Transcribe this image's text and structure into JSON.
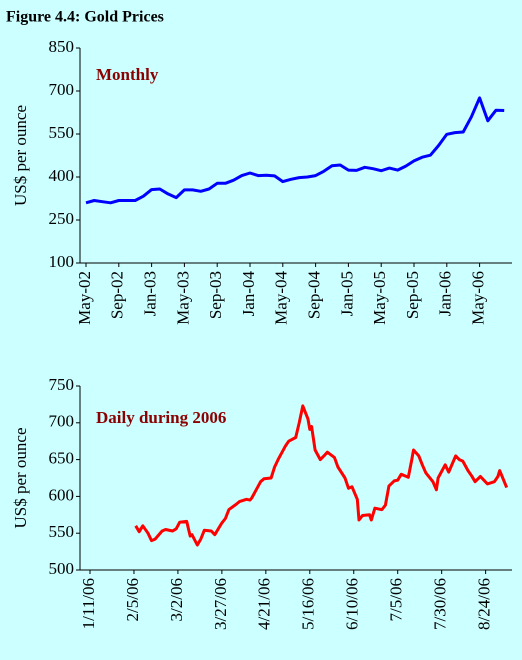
{
  "figure_title": "Figure 4.4: Gold Prices",
  "chart_data": [
    {
      "type": "line",
      "label": "Monthly",
      "y_label": "US$ per ounce",
      "categories": [
        "May-02",
        null,
        null,
        null,
        "Sep-02",
        null,
        null,
        null,
        "Jan-03",
        null,
        null,
        null,
        "May-03",
        null,
        null,
        null,
        "Sep-03",
        null,
        null,
        null,
        "Jan-04",
        null,
        null,
        null,
        "May-04",
        null,
        null,
        null,
        "Sep-04",
        null,
        null,
        null,
        "Jan-05",
        null,
        null,
        null,
        "May-05",
        null,
        null,
        null,
        "Sep-05",
        null,
        null,
        null,
        "Jan-06",
        null,
        null,
        null,
        "May-06",
        null,
        null,
        null
      ],
      "values": [
        310,
        318,
        314,
        310,
        318,
        318,
        318,
        333,
        356,
        358,
        341,
        328,
        355,
        355,
        350,
        358,
        378,
        378,
        389,
        405,
        414,
        405,
        406,
        404,
        384,
        392,
        398,
        400,
        405,
        420,
        439,
        442,
        424,
        423,
        434,
        429,
        422,
        431,
        424,
        438,
        456,
        469,
        476,
        510,
        549,
        555,
        557,
        610,
        676,
        596,
        633,
        632
      ],
      "color": "#0000ff",
      "ylim": [
        100,
        850
      ],
      "yticks": [
        100,
        250,
        400,
        550,
        700,
        850
      ]
    },
    {
      "type": "line",
      "label": "Daily during 2006",
      "y_label": "US$ per ounce",
      "x": [
        "2/6/06",
        "2/8/06",
        "2/10/06",
        "2/13/06",
        "2/15/06",
        "2/17/06",
        "2/21/06",
        "2/23/06",
        "2/27/06",
        "3/1/06",
        "3/3/06",
        "3/7/06",
        "3/9/06",
        "3/10/06",
        "3/13/06",
        "3/15/06",
        "3/17/06",
        "3/21/06",
        "3/23/06",
        "3/27/06",
        "3/29/06",
        "3/31/06",
        "4/4/06",
        "4/6/06",
        "4/10/06",
        "4/12/06",
        "4/13/06",
        "4/18/06",
        "4/20/06",
        "4/24/06",
        "4/26/06",
        "4/28/06",
        "5/2/06",
        "5/4/06",
        "5/8/06",
        "5/10/06",
        "5/12/06",
        "5/15/06",
        "5/16/06",
        "5/17/06",
        "5/19/06",
        "5/22/06",
        "5/24/06",
        "5/26/06",
        "5/30/06",
        "6/1/06",
        "6/5/06",
        "6/7/06",
        "6/9/06",
        "6/12/06",
        "6/13/06",
        "6/15/06",
        "6/19/06",
        "6/20/06",
        "6/22/06",
        "6/26/06",
        "6/28/06",
        "6/30/06",
        "7/3/06",
        "7/5/06",
        "7/7/06",
        "7/11/06",
        "7/13/06",
        "7/14/06",
        "7/17/06",
        "7/19/06",
        "7/21/06",
        "7/25/06",
        "7/27/06",
        "7/28/06",
        "8/1/06",
        "8/3/06",
        "8/7/06",
        "8/9/06",
        "8/11/06",
        "8/14/06",
        "8/16/06",
        "8/18/06",
        "8/21/06",
        "8/23/06",
        "8/25/06",
        "8/29/06",
        "8/31/06",
        "9/1/06",
        "9/5/06"
      ],
      "values": [
        560,
        552,
        560,
        550,
        540,
        542,
        553,
        555,
        553,
        556,
        565,
        566,
        546,
        548,
        534,
        542,
        554,
        553,
        548,
        564,
        570,
        582,
        589,
        593,
        596,
        595,
        598,
        620,
        624,
        625,
        640,
        650,
        668,
        675,
        680,
        700,
        723,
        705,
        691,
        695,
        663,
        650,
        655,
        660,
        653,
        640,
        625,
        611,
        613,
        596,
        568,
        574,
        575,
        568,
        584,
        582,
        588,
        614,
        621,
        622,
        630,
        626,
        650,
        663,
        655,
        643,
        632,
        620,
        609,
        625,
        643,
        633,
        655,
        650,
        648,
        635,
        628,
        620,
        627,
        622,
        617,
        620,
        627,
        635,
        612
      ],
      "color": "#ff0000",
      "xlim": [
        "1/11/06",
        "9/8/06"
      ],
      "xticks": [
        "1/11/06",
        "2/5/06",
        "3/2/06",
        "3/27/06",
        "4/21/06",
        "5/16/06",
        "6/10/06",
        "7/5/06",
        "7/30/06",
        "8/24/06"
      ],
      "ylim": [
        500,
        750
      ],
      "yticks": [
        500,
        550,
        600,
        650,
        700,
        750
      ]
    }
  ]
}
